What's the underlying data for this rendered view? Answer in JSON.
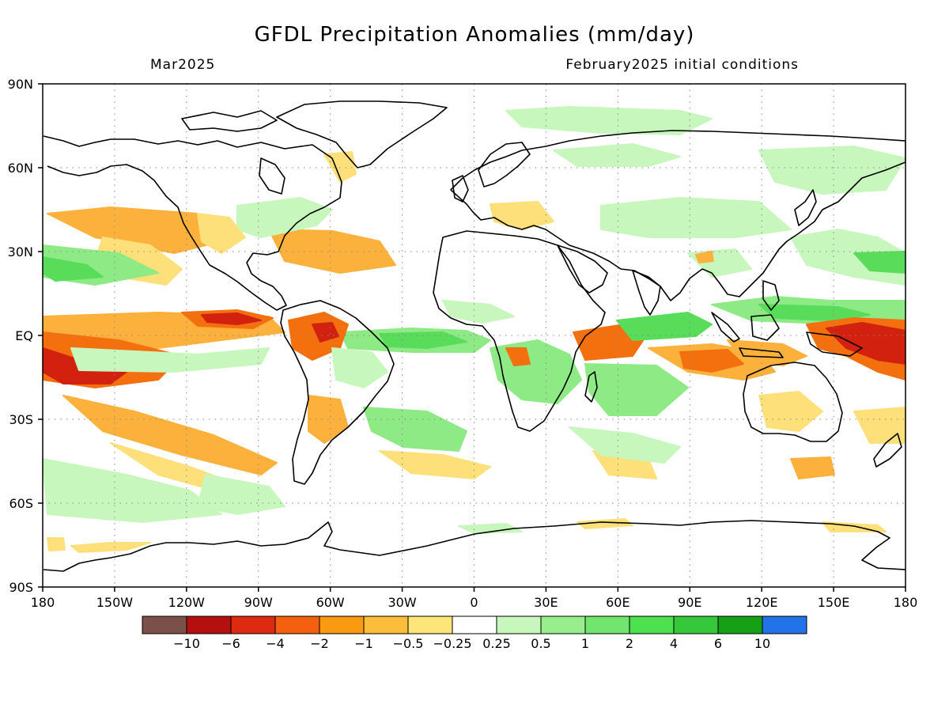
{
  "header": {
    "title": "GFDL Precipitation Anomalies (mm/day)",
    "valid_month": "Mar2025",
    "init_conditions": "February2025 initial conditions"
  },
  "map": {
    "lon_ticks": [
      "180",
      "150W",
      "120W",
      "90W",
      "60W",
      "30W",
      "0",
      "30E",
      "60E",
      "90E",
      "120E",
      "150E",
      "180"
    ],
    "lat_ticks": [
      "90N",
      "60N",
      "30N",
      "EQ",
      "30S",
      "60S",
      "90S"
    ],
    "grid": "dotted"
  },
  "colorbar": {
    "labels": [
      "−10",
      "−6",
      "−4",
      "−2",
      "−1",
      "−0.5",
      "−0.25",
      "0.25",
      "0.5",
      "1",
      "2",
      "4",
      "6",
      "10"
    ],
    "colors": [
      "#7a5048",
      "#b50f0f",
      "#dd2a10",
      "#f46010",
      "#f99a10",
      "#fbbd3a",
      "#fde57a",
      "#ffffff",
      "#c8f7bd",
      "#98ee8c",
      "#72e56e",
      "#4de04f",
      "#35c83a",
      "#15a015",
      "#2272e8"
    ]
  },
  "anomaly_colors": {
    "dry_strong": "#d2220f",
    "dry_moderate": "#f4700f",
    "dry_weak": "#fbb13c",
    "dry_slight": "#fde07a",
    "wet_slight": "#c8f7bd",
    "wet_weak": "#8eea85",
    "wet_moderate": "#58dc5a",
    "wet_strong": "#2fb235"
  }
}
